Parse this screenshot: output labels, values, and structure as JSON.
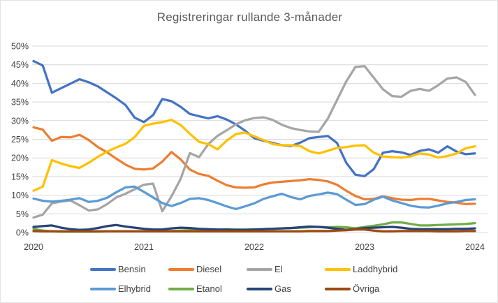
{
  "title": "Registreringar rullande 3-månader",
  "chart_data": {
    "type": "line",
    "title": "Registreringar rullande 3-månader",
    "x_start": "2020-01",
    "x_interval": "monthly",
    "x_axis": {
      "tick_labels": [
        "2020",
        "2021",
        "2022",
        "2023",
        "2024"
      ]
    },
    "y_axis": {
      "tick_labels": [
        "0%",
        "5%",
        "10%",
        "15%",
        "20%",
        "25%",
        "30%",
        "35%",
        "40%",
        "45%",
        "50%"
      ],
      "min": 0,
      "max": 50,
      "step": 5,
      "unit": "%",
      "grid": true
    },
    "legend_position": "bottom",
    "grid_color": "#D9D9D9",
    "axis_text_color": "#404040",
    "title_color": "#595959",
    "series": [
      {
        "name": "Bensin",
        "color": "#4472C4",
        "values": [
          46.0,
          44.8,
          37.5,
          38.7,
          39.9,
          41.1,
          40.3,
          39.2,
          37.6,
          36.0,
          34.2,
          30.8,
          29.6,
          31.5,
          35.8,
          35.2,
          33.7,
          31.8,
          31.2,
          30.6,
          31.2,
          30.3,
          29.0,
          27.3,
          25.3,
          24.6,
          24.0,
          23.4,
          23.2,
          24.1,
          25.3,
          25.6,
          25.9,
          24.0,
          18.7,
          15.5,
          15.1,
          17.0,
          21.4,
          21.8,
          21.5,
          20.8,
          21.9,
          22.3,
          21.4,
          23.1,
          21.7,
          21.0,
          21.2
        ]
      },
      {
        "name": "Diesel",
        "color": "#ED7D31",
        "values": [
          28.2,
          27.6,
          24.6,
          25.6,
          25.5,
          26.2,
          24.8,
          22.9,
          21.5,
          19.8,
          18.2,
          17.1,
          16.9,
          17.2,
          19.0,
          21.6,
          19.6,
          16.9,
          15.7,
          15.2,
          13.9,
          12.7,
          12.1,
          12.0,
          12.1,
          12.9,
          13.4,
          13.6,
          13.8,
          14.0,
          14.3,
          14.1,
          13.7,
          12.8,
          11.2,
          9.8,
          8.9,
          9.0,
          9.7,
          9.2,
          8.8,
          8.7,
          9.0,
          9.0,
          8.6,
          8.2,
          8.0,
          7.6,
          7.7
        ]
      },
      {
        "name": "El",
        "color": "#A5A5A5",
        "values": [
          4.0,
          4.8,
          7.8,
          8.3,
          8.6,
          7.3,
          5.9,
          6.2,
          7.6,
          9.4,
          10.4,
          11.6,
          12.8,
          13.1,
          5.7,
          9.7,
          14.4,
          21.3,
          20.2,
          23.7,
          25.9,
          27.4,
          29.0,
          30.1,
          30.7,
          30.9,
          30.2,
          28.9,
          28.0,
          27.5,
          27.1,
          27.0,
          30.5,
          35.5,
          40.5,
          44.4,
          44.6,
          41.5,
          38.4,
          36.6,
          36.4,
          38.0,
          38.5,
          38.0,
          39.5,
          41.3,
          41.6,
          40.4,
          36.9
        ]
      },
      {
        "name": "Laddhybrid",
        "color": "#FFC000",
        "values": [
          11.2,
          12.3,
          19.4,
          18.5,
          17.8,
          17.3,
          18.7,
          20.3,
          21.7,
          22.8,
          23.8,
          25.6,
          28.6,
          29.2,
          29.6,
          30.2,
          28.8,
          26.5,
          24.3,
          23.7,
          22.3,
          24.6,
          26.4,
          26.8,
          25.8,
          24.8,
          23.7,
          23.4,
          23.4,
          23.2,
          21.8,
          21.2,
          21.9,
          22.7,
          22.9,
          23.3,
          23.4,
          21.4,
          20.4,
          20.2,
          20.1,
          20.4,
          21.2,
          20.9,
          20.1,
          20.5,
          21.2,
          22.6,
          23.1
        ]
      },
      {
        "name": "Elhybrid",
        "color": "#5B9BD5",
        "values": [
          9.1,
          8.5,
          8.3,
          8.5,
          8.8,
          9.2,
          8.2,
          8.5,
          9.3,
          10.8,
          12.1,
          12.3,
          10.9,
          9.4,
          7.9,
          7.1,
          7.9,
          9.0,
          9.2,
          8.7,
          7.9,
          7.0,
          6.3,
          7.0,
          7.8,
          9.0,
          9.7,
          10.4,
          9.5,
          8.9,
          9.8,
          10.2,
          10.7,
          10.3,
          8.8,
          7.4,
          7.6,
          8.8,
          9.6,
          8.6,
          7.9,
          7.2,
          6.8,
          6.7,
          7.2,
          7.8,
          8.2,
          8.7,
          8.9
        ]
      },
      {
        "name": "Etanol",
        "color": "#70AD47",
        "values": [
          1.0,
          0.5,
          0.3,
          0.2,
          0.2,
          0.2,
          0.2,
          0.2,
          0.3,
          0.3,
          0.3,
          0.3,
          0.3,
          0.3,
          0.3,
          0.4,
          0.5,
          0.6,
          0.6,
          0.7,
          0.7,
          0.8,
          0.8,
          0.8,
          0.8,
          0.9,
          1.0,
          1.1,
          1.2,
          1.3,
          1.4,
          1.5,
          1.4,
          1.5,
          1.4,
          1.1,
          1.5,
          1.8,
          2.2,
          2.7,
          2.7,
          2.3,
          1.9,
          1.9,
          2.0,
          2.1,
          2.2,
          2.3,
          2.5
        ]
      },
      {
        "name": "Gas",
        "color": "#264478",
        "values": [
          1.5,
          1.7,
          1.9,
          1.3,
          0.9,
          0.7,
          0.8,
          1.2,
          1.7,
          2.0,
          1.6,
          1.3,
          1.0,
          0.8,
          0.8,
          1.1,
          1.3,
          1.2,
          1.0,
          0.9,
          0.8,
          0.8,
          0.7,
          0.7,
          0.8,
          0.9,
          1.0,
          1.1,
          1.2,
          1.4,
          1.6,
          1.5,
          1.3,
          1.0,
          0.7,
          0.9,
          1.2,
          1.3,
          1.4,
          1.5,
          1.3,
          1.0,
          0.9,
          0.9,
          0.9,
          0.9,
          1.0,
          1.0,
          1.1
        ]
      },
      {
        "name": "Övriga",
        "color": "#9E480E",
        "values": [
          0.4,
          0.3,
          0.3,
          0.3,
          0.3,
          0.3,
          0.3,
          0.3,
          0.3,
          0.3,
          0.3,
          0.3,
          0.3,
          0.3,
          0.3,
          0.3,
          0.3,
          0.3,
          0.3,
          0.3,
          0.3,
          0.3,
          0.3,
          0.3,
          0.3,
          0.3,
          0.3,
          0.3,
          0.3,
          0.3,
          0.4,
          0.4,
          0.4,
          0.5,
          0.6,
          0.8,
          0.8,
          0.5,
          0.3,
          0.3,
          0.4,
          0.4,
          0.4,
          0.4,
          0.3,
          0.3,
          0.3,
          0.4,
          0.4
        ]
      }
    ]
  }
}
